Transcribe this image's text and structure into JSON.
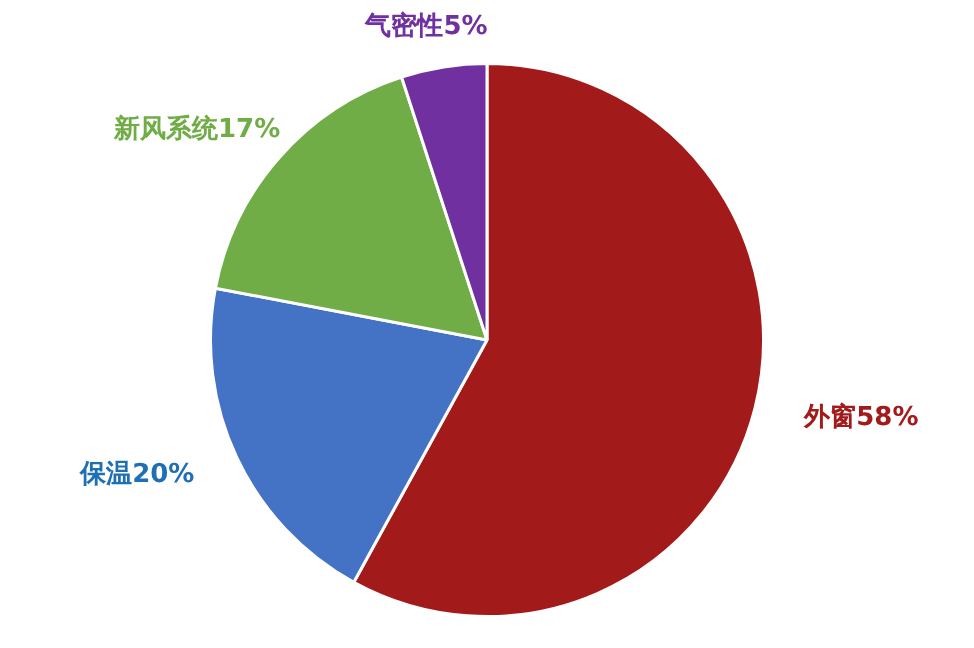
{
  "chart_data": {
    "type": "pie",
    "categories": [
      "外窗",
      "保温",
      "新风系统",
      "气密性"
    ],
    "values": [
      58,
      20,
      17,
      5
    ],
    "colors": [
      "#a31a1a",
      "#4472c4",
      "#70ad47",
      "#7030a0"
    ],
    "value_labels": [
      "58%",
      "20%",
      "17%",
      "5%"
    ],
    "legend": false
  }
}
